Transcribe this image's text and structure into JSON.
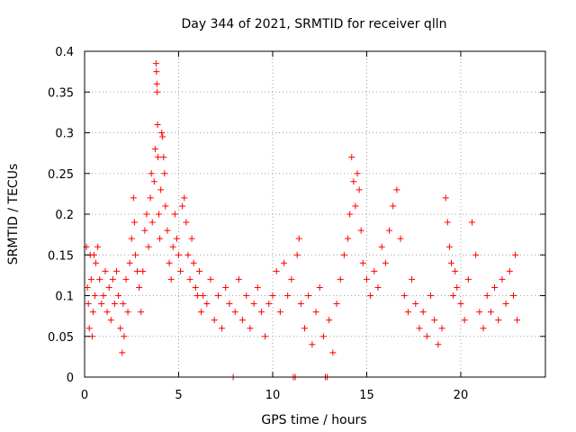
{
  "chart_data": {
    "type": "scatter",
    "title": "Day 344 of 2021, SRMTID for receiver qlln",
    "xlabel": "GPS time / hours",
    "ylabel": "SRMTID / TECUs",
    "xlim": [
      0,
      24.5
    ],
    "ylim": [
      0,
      0.4
    ],
    "xticks": [
      0,
      5,
      10,
      15,
      20
    ],
    "xtick_labels": [
      "0",
      "5",
      "10",
      "15",
      "20"
    ],
    "yticks": [
      0,
      0.05,
      0.1,
      0.15,
      0.2,
      0.25,
      0.3,
      0.35,
      0.4
    ],
    "ytick_labels": [
      "0",
      "0.05",
      "0.1",
      "0.15",
      "0.2",
      "0.25",
      "0.3",
      "0.35",
      "0.4"
    ],
    "grid": true,
    "marker": "plus",
    "color": "#ff0000",
    "series": [
      {
        "name": "SRMTID",
        "points": [
          [
            0.1,
            0.16
          ],
          [
            0.15,
            0.11
          ],
          [
            0.2,
            0.09
          ],
          [
            0.25,
            0.06
          ],
          [
            0.3,
            0.15
          ],
          [
            0.35,
            0.12
          ],
          [
            0.4,
            0.05
          ],
          [
            0.45,
            0.08
          ],
          [
            0.5,
            0.15
          ],
          [
            0.55,
            0.1
          ],
          [
            0.6,
            0.14
          ],
          [
            0.7,
            0.16
          ],
          [
            0.8,
            0.12
          ],
          [
            0.9,
            0.09
          ],
          [
            1.0,
            0.1
          ],
          [
            1.1,
            0.13
          ],
          [
            1.2,
            0.08
          ],
          [
            1.3,
            0.11
          ],
          [
            1.4,
            0.07
          ],
          [
            1.5,
            0.12
          ],
          [
            1.6,
            0.09
          ],
          [
            1.7,
            0.13
          ],
          [
            1.8,
            0.1
          ],
          [
            1.9,
            0.06
          ],
          [
            2.0,
            0.03
          ],
          [
            2.05,
            0.09
          ],
          [
            2.1,
            0.05
          ],
          [
            2.2,
            0.12
          ],
          [
            2.3,
            0.08
          ],
          [
            2.4,
            0.14
          ],
          [
            2.5,
            0.17
          ],
          [
            2.6,
            0.22
          ],
          [
            2.65,
            0.19
          ],
          [
            2.7,
            0.15
          ],
          [
            2.8,
            0.13
          ],
          [
            2.9,
            0.11
          ],
          [
            3.0,
            0.08
          ],
          [
            3.1,
            0.13
          ],
          [
            3.2,
            0.18
          ],
          [
            3.3,
            0.2
          ],
          [
            3.4,
            0.16
          ],
          [
            3.5,
            0.22
          ],
          [
            3.55,
            0.25
          ],
          [
            3.6,
            0.19
          ],
          [
            3.7,
            0.24
          ],
          [
            3.75,
            0.28
          ],
          [
            3.8,
            0.385
          ],
          [
            3.82,
            0.375
          ],
          [
            3.84,
            0.36
          ],
          [
            3.86,
            0.35
          ],
          [
            3.88,
            0.31
          ],
          [
            3.9,
            0.27
          ],
          [
            3.95,
            0.2
          ],
          [
            4.0,
            0.17
          ],
          [
            4.05,
            0.23
          ],
          [
            4.1,
            0.3
          ],
          [
            4.15,
            0.295
          ],
          [
            4.2,
            0.27
          ],
          [
            4.25,
            0.25
          ],
          [
            4.3,
            0.21
          ],
          [
            4.4,
            0.18
          ],
          [
            4.5,
            0.14
          ],
          [
            4.6,
            0.12
          ],
          [
            4.7,
            0.16
          ],
          [
            4.8,
            0.2
          ],
          [
            4.9,
            0.17
          ],
          [
            5.0,
            0.15
          ],
          [
            5.1,
            0.13
          ],
          [
            5.2,
            0.21
          ],
          [
            5.3,
            0.22
          ],
          [
            5.4,
            0.19
          ],
          [
            5.5,
            0.15
          ],
          [
            5.6,
            0.12
          ],
          [
            5.7,
            0.17
          ],
          [
            5.8,
            0.14
          ],
          [
            5.9,
            0.11
          ],
          [
            6.0,
            0.1
          ],
          [
            6.1,
            0.13
          ],
          [
            6.2,
            0.08
          ],
          [
            6.3,
            0.1
          ],
          [
            6.5,
            0.09
          ],
          [
            6.7,
            0.12
          ],
          [
            6.9,
            0.07
          ],
          [
            7.1,
            0.1
          ],
          [
            7.3,
            0.06
          ],
          [
            7.5,
            0.11
          ],
          [
            7.7,
            0.09
          ],
          [
            7.9,
            0.0
          ],
          [
            8.0,
            0.08
          ],
          [
            8.2,
            0.12
          ],
          [
            8.4,
            0.07
          ],
          [
            8.6,
            0.1
          ],
          [
            8.8,
            0.06
          ],
          [
            9.0,
            0.09
          ],
          [
            9.2,
            0.11
          ],
          [
            9.4,
            0.08
          ],
          [
            9.6,
            0.05
          ],
          [
            9.8,
            0.09
          ],
          [
            10.0,
            0.1
          ],
          [
            10.2,
            0.13
          ],
          [
            10.4,
            0.08
          ],
          [
            10.6,
            0.14
          ],
          [
            10.8,
            0.1
          ],
          [
            11.0,
            0.12
          ],
          [
            11.1,
            0.0
          ],
          [
            11.2,
            0.0
          ],
          [
            11.3,
            0.15
          ],
          [
            11.4,
            0.17
          ],
          [
            11.5,
            0.09
          ],
          [
            11.7,
            0.06
          ],
          [
            11.9,
            0.1
          ],
          [
            12.1,
            0.04
          ],
          [
            12.3,
            0.08
          ],
          [
            12.5,
            0.11
          ],
          [
            12.7,
            0.05
          ],
          [
            12.8,
            0.0
          ],
          [
            12.9,
            0.0
          ],
          [
            13.0,
            0.07
          ],
          [
            13.2,
            0.03
          ],
          [
            13.4,
            0.09
          ],
          [
            13.6,
            0.12
          ],
          [
            13.8,
            0.15
          ],
          [
            14.0,
            0.17
          ],
          [
            14.1,
            0.2
          ],
          [
            14.2,
            0.27
          ],
          [
            14.3,
            0.24
          ],
          [
            14.4,
            0.21
          ],
          [
            14.5,
            0.25
          ],
          [
            14.6,
            0.23
          ],
          [
            14.7,
            0.18
          ],
          [
            14.8,
            0.14
          ],
          [
            15.0,
            0.12
          ],
          [
            15.2,
            0.1
          ],
          [
            15.4,
            0.13
          ],
          [
            15.6,
            0.11
          ],
          [
            15.8,
            0.16
          ],
          [
            16.0,
            0.14
          ],
          [
            16.2,
            0.18
          ],
          [
            16.4,
            0.21
          ],
          [
            16.6,
            0.23
          ],
          [
            16.8,
            0.17
          ],
          [
            17.0,
            0.1
          ],
          [
            17.2,
            0.08
          ],
          [
            17.4,
            0.12
          ],
          [
            17.6,
            0.09
          ],
          [
            17.8,
            0.06
          ],
          [
            18.0,
            0.08
          ],
          [
            18.2,
            0.05
          ],
          [
            18.4,
            0.1
          ],
          [
            18.6,
            0.07
          ],
          [
            18.8,
            0.04
          ],
          [
            19.0,
            0.06
          ],
          [
            19.2,
            0.22
          ],
          [
            19.3,
            0.19
          ],
          [
            19.4,
            0.16
          ],
          [
            19.5,
            0.14
          ],
          [
            19.6,
            0.1
          ],
          [
            19.7,
            0.13
          ],
          [
            19.8,
            0.11
          ],
          [
            20.0,
            0.09
          ],
          [
            20.2,
            0.07
          ],
          [
            20.4,
            0.12
          ],
          [
            20.6,
            0.19
          ],
          [
            20.8,
            0.15
          ],
          [
            21.0,
            0.08
          ],
          [
            21.2,
            0.06
          ],
          [
            21.4,
            0.1
          ],
          [
            21.6,
            0.08
          ],
          [
            21.8,
            0.11
          ],
          [
            22.0,
            0.07
          ],
          [
            22.2,
            0.12
          ],
          [
            22.4,
            0.09
          ],
          [
            22.6,
            0.13
          ],
          [
            22.8,
            0.1
          ],
          [
            22.9,
            0.15
          ],
          [
            23.0,
            0.07
          ]
        ]
      }
    ]
  }
}
